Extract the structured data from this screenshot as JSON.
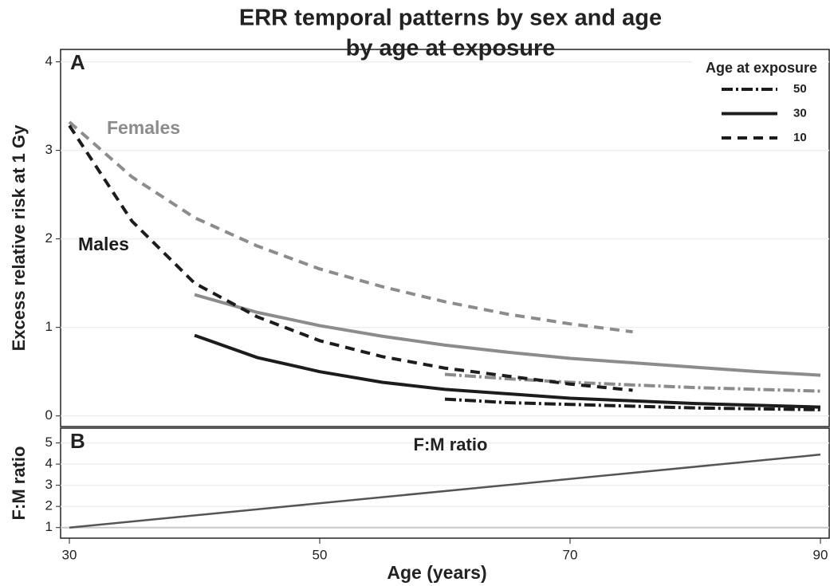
{
  "chart_data": [
    {
      "type": "line",
      "title": "ERR temporal patterns by sex and age",
      "subtitle": "by age at exposure",
      "panel_label": "A",
      "ylabel": "Excess relative risk at 1 Gy",
      "x": [
        30,
        35,
        40,
        45,
        50,
        55,
        60,
        65,
        70,
        75,
        80,
        85,
        90
      ],
      "xlim": [
        29.3,
        90.7
      ],
      "ylim": [
        -0.12,
        4.14
      ],
      "yticks": [
        0,
        1,
        2,
        3,
        4
      ],
      "grid": true,
      "legend_title": "Age at exposure",
      "legend": "top-right",
      "groups": [
        {
          "name": "Females",
          "color": "#8c8c8c",
          "series": [
            {
              "name": "50",
              "dash": "dashdot",
              "values": [
                null,
                null,
                null,
                null,
                null,
                null,
                0.47,
                0.42,
                0.38,
                0.35,
                0.32,
                0.3,
                0.28
              ]
            },
            {
              "name": "30",
              "dash": "solid",
              "values": [
                null,
                null,
                1.37,
                1.17,
                1.02,
                0.9,
                0.8,
                0.72,
                0.65,
                0.6,
                0.55,
                0.5,
                0.46
              ]
            },
            {
              "name": "10",
              "dash": "dashed",
              "values": [
                3.32,
                2.7,
                2.24,
                1.92,
                1.66,
                1.46,
                1.29,
                1.15,
                1.04,
                0.95,
                null,
                null,
                null
              ]
            }
          ]
        },
        {
          "name": "Males",
          "color": "#1c1c1c",
          "series": [
            {
              "name": "50",
              "dash": "dashdot",
              "values": [
                null,
                null,
                null,
                null,
                null,
                null,
                0.19,
                0.15,
                0.13,
                0.11,
                0.09,
                0.08,
                0.07
              ]
            },
            {
              "name": "30",
              "dash": "solid",
              "values": [
                null,
                null,
                0.91,
                0.66,
                0.5,
                0.38,
                0.3,
                0.25,
                0.2,
                0.17,
                0.14,
                0.12,
                0.1
              ]
            },
            {
              "name": "10",
              "dash": "dashed",
              "values": [
                3.28,
                2.2,
                1.5,
                1.12,
                0.85,
                0.67,
                0.54,
                0.45,
                0.36,
                0.29,
                null,
                null,
                null
              ]
            }
          ]
        }
      ]
    },
    {
      "type": "line",
      "panel_label": "B",
      "annotation": "F:M ratio",
      "ylabel": "F:M ratio",
      "xlabel": "Age (years)",
      "x": [
        30,
        90
      ],
      "xlim": [
        29.3,
        90.7
      ],
      "xticks": [
        30,
        50,
        70,
        90
      ],
      "ylim": [
        0.5,
        5.7
      ],
      "yticks": [
        1,
        2,
        3,
        4,
        5
      ],
      "grid": true,
      "reference_line": 1,
      "series": [
        {
          "color": "#555555",
          "values": [
            1,
            4.45
          ]
        }
      ]
    }
  ]
}
